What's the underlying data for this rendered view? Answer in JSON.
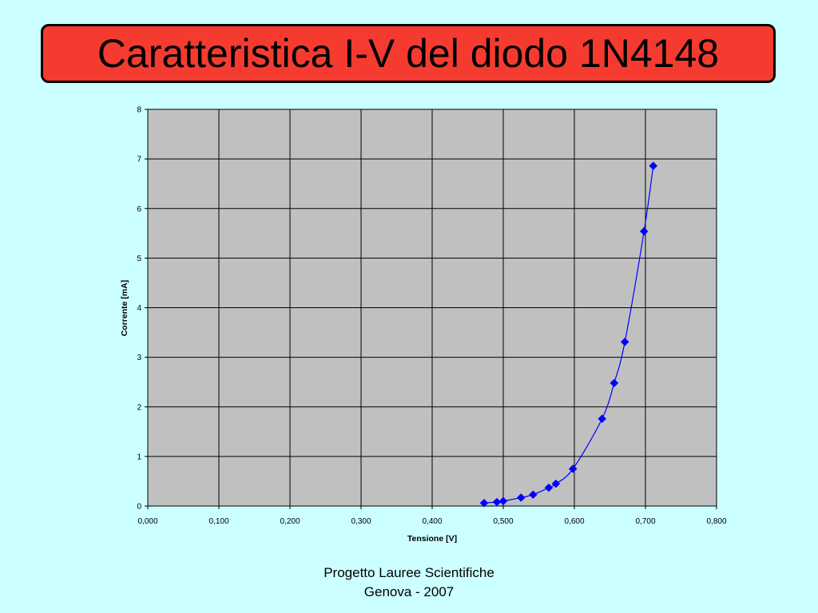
{
  "slide": {
    "title": "Caratteristica I-V del diodo 1N4148",
    "footer_line1": "Progetto Lauree Scientifiche",
    "footer_line2": "Genova - 2007"
  },
  "colors": {
    "background": "#ccffff",
    "title_fill": "#f53b30",
    "plot_area": "#c0c0c0",
    "series": "#0000ff",
    "grid": "#000000"
  },
  "chart_data": {
    "type": "scatter",
    "xlabel": "Tensione [V]",
    "ylabel": "Corrente [mA]",
    "xlim": [
      0,
      0.8
    ],
    "ylim": [
      0,
      8
    ],
    "xticks": [
      0,
      0.1,
      0.2,
      0.3,
      0.4,
      0.5,
      0.6,
      0.7,
      0.8
    ],
    "xtick_labels": [
      "0,000",
      "0,100",
      "0,200",
      "0,300",
      "0,400",
      "0,500",
      "0,600",
      "0,700",
      "0,800"
    ],
    "yticks": [
      0,
      1,
      2,
      3,
      4,
      5,
      6,
      7,
      8
    ],
    "ytick_labels": [
      "0",
      "1",
      "2",
      "3",
      "4",
      "5",
      "6",
      "7",
      "8"
    ],
    "grid": true,
    "marker": "diamond",
    "line": "smooth",
    "series": [
      {
        "x": [
          0.473,
          0.491,
          0.5,
          0.525,
          0.542,
          0.564,
          0.574,
          0.598,
          0.639,
          0.656,
          0.671,
          0.698,
          0.711
        ],
        "y": [
          0.06,
          0.08,
          0.1,
          0.17,
          0.23,
          0.37,
          0.45,
          0.75,
          1.76,
          2.48,
          3.31,
          5.54,
          6.86
        ]
      }
    ]
  }
}
